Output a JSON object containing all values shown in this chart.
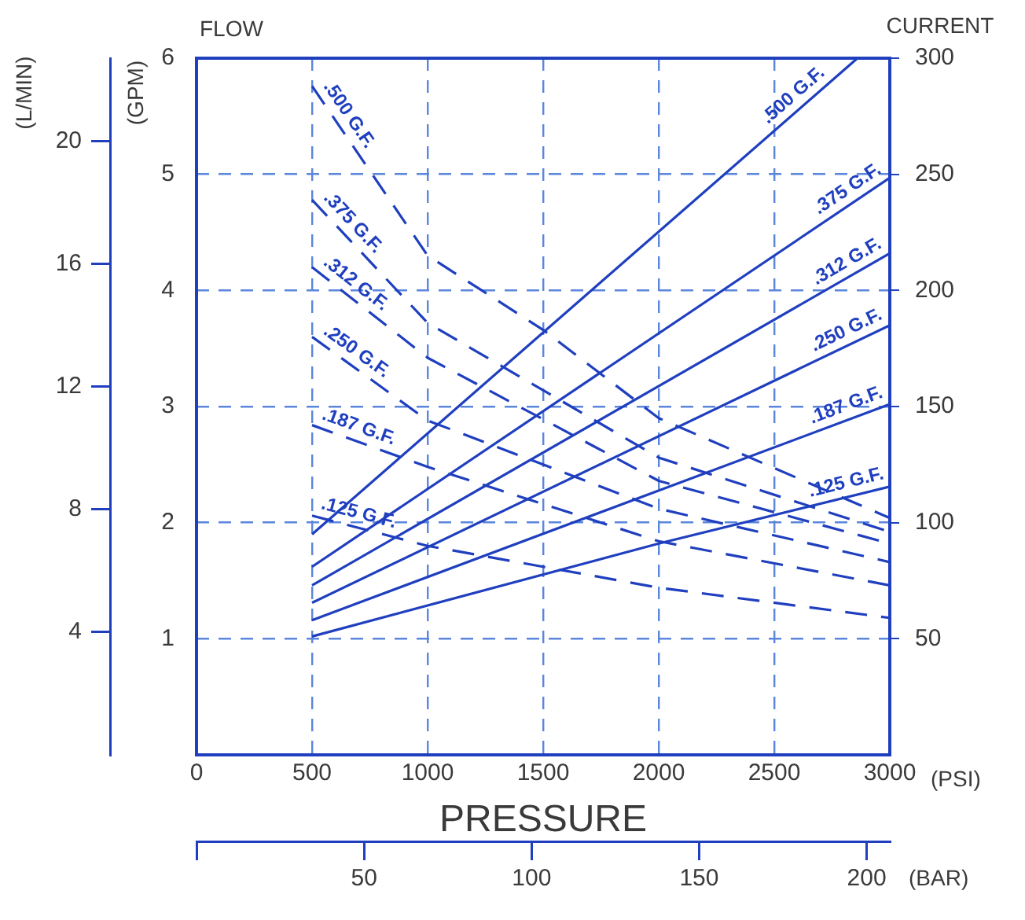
{
  "chart_data": {
    "type": "line",
    "xlabel": "PRESSURE",
    "ylabel": "(GPM)",
    "y2label": "CURRENT",
    "y3label": "(L/MIN)",
    "x2label": "(BAR)",
    "annotations": [
      "FLOW",
      "(PSI)"
    ],
    "xlim": [
      0,
      3000
    ],
    "xticks": [
      0,
      500,
      1000,
      1500,
      2000,
      2500,
      3000
    ],
    "ylim": [
      0,
      6
    ],
    "yticks": [
      1,
      2,
      3,
      4,
      5,
      6
    ],
    "y2lim": [
      0,
      300
    ],
    "y2ticks": [
      50,
      100,
      150,
      200,
      250,
      300
    ],
    "y3lim": [
      0,
      22.7
    ],
    "y3ticks": [
      4,
      8,
      12,
      16,
      20
    ],
    "x2lim": [
      0,
      206.9
    ],
    "x2ticks": [
      {
        "value": 0,
        "label": null
      },
      50,
      100,
      150,
      200
    ],
    "grid": true,
    "legend": false,
    "marker": "none",
    "series": [
      {
        "name": ".500 G.F.",
        "color": "#1f3fbf",
        "line_style": "solid",
        "x": [
          500,
          2860
        ],
        "values": [
          1.9,
          6.0
        ]
      },
      {
        "name": ".375 G.F.",
        "color": "#1f3fbf",
        "line_style": "solid",
        "x": [
          500,
          3000
        ],
        "values": [
          1.62,
          4.97
        ]
      },
      {
        "name": ".312 G.F.",
        "color": "#1f3fbf",
        "line_style": "solid",
        "x": [
          500,
          3000
        ],
        "values": [
          1.46,
          4.32
        ]
      },
      {
        "name": ".250 G.F.",
        "color": "#1f3fbf",
        "line_style": "solid",
        "x": [
          500,
          3000
        ],
        "values": [
          1.31,
          3.7
        ]
      },
      {
        "name": ".187 G.F.",
        "color": "#1f3fbf",
        "line_style": "solid",
        "x": [
          500,
          3000
        ],
        "values": [
          1.16,
          3.02
        ]
      },
      {
        "name": ".125 G.F.",
        "color": "#1f3fbf",
        "line_style": "solid",
        "x": [
          500,
          2000,
          3000
        ],
        "values": [
          1.02,
          1.82,
          2.31
        ]
      },
      {
        "name": ".500 G.F.",
        "color": "#1f3fbf",
        "line_style": "dashed",
        "axis": "y2",
        "x": [
          500,
          1000,
          1500,
          2000,
          3000
        ],
        "values": [
          288,
          215,
          183,
          145,
          102
        ]
      },
      {
        "name": ".375 G.F.",
        "color": "#1f3fbf",
        "line_style": "dashed",
        "axis": "y2",
        "x": [
          500,
          1000,
          2000,
          3000
        ],
        "values": [
          239,
          186,
          128,
          96
        ]
      },
      {
        "name": ".312 G.F.",
        "color": "#1f3fbf",
        "line_style": "dashed",
        "axis": "y2",
        "x": [
          500,
          1000,
          2000,
          3000
        ],
        "values": [
          210,
          171,
          118,
          91
        ]
      },
      {
        "name": ".250 G.F.",
        "color": "#1f3fbf",
        "line_style": "dashed",
        "axis": "y2",
        "x": [
          500,
          1000,
          2000,
          3000
        ],
        "values": [
          180,
          144,
          106,
          83
        ]
      },
      {
        "name": ".187 G.F.",
        "color": "#1f3fbf",
        "line_style": "dashed",
        "axis": "y2",
        "x": [
          500,
          1000,
          2000,
          3000
        ],
        "values": [
          142,
          124,
          92,
          73
        ]
      },
      {
        "name": ".125 G.F.",
        "color": "#1f3fbf",
        "line_style": "dashed",
        "axis": "y2",
        "x": [
          500,
          1000,
          2000,
          3000
        ],
        "values": [
          103,
          90,
          72,
          59
        ]
      }
    ]
  }
}
